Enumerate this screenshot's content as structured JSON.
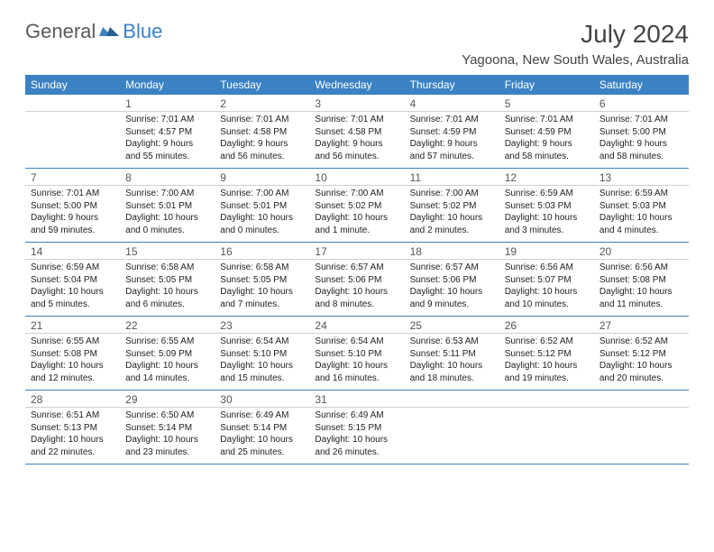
{
  "logo": {
    "part1": "General",
    "part2": "Blue"
  },
  "title": "July 2024",
  "location": "Yagoona, New South Wales, Australia",
  "colors": {
    "accent": "#3b82c4",
    "text": "#222",
    "header_text": "#ffffff"
  },
  "weekdays": [
    "Sunday",
    "Monday",
    "Tuesday",
    "Wednesday",
    "Thursday",
    "Friday",
    "Saturday"
  ],
  "grid": {
    "first_weekday": 1,
    "days_in_month": 31
  },
  "days": {
    "1": {
      "sunrise": "7:01 AM",
      "sunset": "4:57 PM",
      "daylight": "9 hours and 55 minutes."
    },
    "2": {
      "sunrise": "7:01 AM",
      "sunset": "4:58 PM",
      "daylight": "9 hours and 56 minutes."
    },
    "3": {
      "sunrise": "7:01 AM",
      "sunset": "4:58 PM",
      "daylight": "9 hours and 56 minutes."
    },
    "4": {
      "sunrise": "7:01 AM",
      "sunset": "4:59 PM",
      "daylight": "9 hours and 57 minutes."
    },
    "5": {
      "sunrise": "7:01 AM",
      "sunset": "4:59 PM",
      "daylight": "9 hours and 58 minutes."
    },
    "6": {
      "sunrise": "7:01 AM",
      "sunset": "5:00 PM",
      "daylight": "9 hours and 58 minutes."
    },
    "7": {
      "sunrise": "7:01 AM",
      "sunset": "5:00 PM",
      "daylight": "9 hours and 59 minutes."
    },
    "8": {
      "sunrise": "7:00 AM",
      "sunset": "5:01 PM",
      "daylight": "10 hours and 0 minutes."
    },
    "9": {
      "sunrise": "7:00 AM",
      "sunset": "5:01 PM",
      "daylight": "10 hours and 0 minutes."
    },
    "10": {
      "sunrise": "7:00 AM",
      "sunset": "5:02 PM",
      "daylight": "10 hours and 1 minute."
    },
    "11": {
      "sunrise": "7:00 AM",
      "sunset": "5:02 PM",
      "daylight": "10 hours and 2 minutes."
    },
    "12": {
      "sunrise": "6:59 AM",
      "sunset": "5:03 PM",
      "daylight": "10 hours and 3 minutes."
    },
    "13": {
      "sunrise": "6:59 AM",
      "sunset": "5:03 PM",
      "daylight": "10 hours and 4 minutes."
    },
    "14": {
      "sunrise": "6:59 AM",
      "sunset": "5:04 PM",
      "daylight": "10 hours and 5 minutes."
    },
    "15": {
      "sunrise": "6:58 AM",
      "sunset": "5:05 PM",
      "daylight": "10 hours and 6 minutes."
    },
    "16": {
      "sunrise": "6:58 AM",
      "sunset": "5:05 PM",
      "daylight": "10 hours and 7 minutes."
    },
    "17": {
      "sunrise": "6:57 AM",
      "sunset": "5:06 PM",
      "daylight": "10 hours and 8 minutes."
    },
    "18": {
      "sunrise": "6:57 AM",
      "sunset": "5:06 PM",
      "daylight": "10 hours and 9 minutes."
    },
    "19": {
      "sunrise": "6:56 AM",
      "sunset": "5:07 PM",
      "daylight": "10 hours and 10 minutes."
    },
    "20": {
      "sunrise": "6:56 AM",
      "sunset": "5:08 PM",
      "daylight": "10 hours and 11 minutes."
    },
    "21": {
      "sunrise": "6:55 AM",
      "sunset": "5:08 PM",
      "daylight": "10 hours and 12 minutes."
    },
    "22": {
      "sunrise": "6:55 AM",
      "sunset": "5:09 PM",
      "daylight": "10 hours and 14 minutes."
    },
    "23": {
      "sunrise": "6:54 AM",
      "sunset": "5:10 PM",
      "daylight": "10 hours and 15 minutes."
    },
    "24": {
      "sunrise": "6:54 AM",
      "sunset": "5:10 PM",
      "daylight": "10 hours and 16 minutes."
    },
    "25": {
      "sunrise": "6:53 AM",
      "sunset": "5:11 PM",
      "daylight": "10 hours and 18 minutes."
    },
    "26": {
      "sunrise": "6:52 AM",
      "sunset": "5:12 PM",
      "daylight": "10 hours and 19 minutes."
    },
    "27": {
      "sunrise": "6:52 AM",
      "sunset": "5:12 PM",
      "daylight": "10 hours and 20 minutes."
    },
    "28": {
      "sunrise": "6:51 AM",
      "sunset": "5:13 PM",
      "daylight": "10 hours and 22 minutes."
    },
    "29": {
      "sunrise": "6:50 AM",
      "sunset": "5:14 PM",
      "daylight": "10 hours and 23 minutes."
    },
    "30": {
      "sunrise": "6:49 AM",
      "sunset": "5:14 PM",
      "daylight": "10 hours and 25 minutes."
    },
    "31": {
      "sunrise": "6:49 AM",
      "sunset": "5:15 PM",
      "daylight": "10 hours and 26 minutes."
    }
  },
  "labels": {
    "sunrise": "Sunrise:",
    "sunset": "Sunset:",
    "daylight": "Daylight:"
  }
}
